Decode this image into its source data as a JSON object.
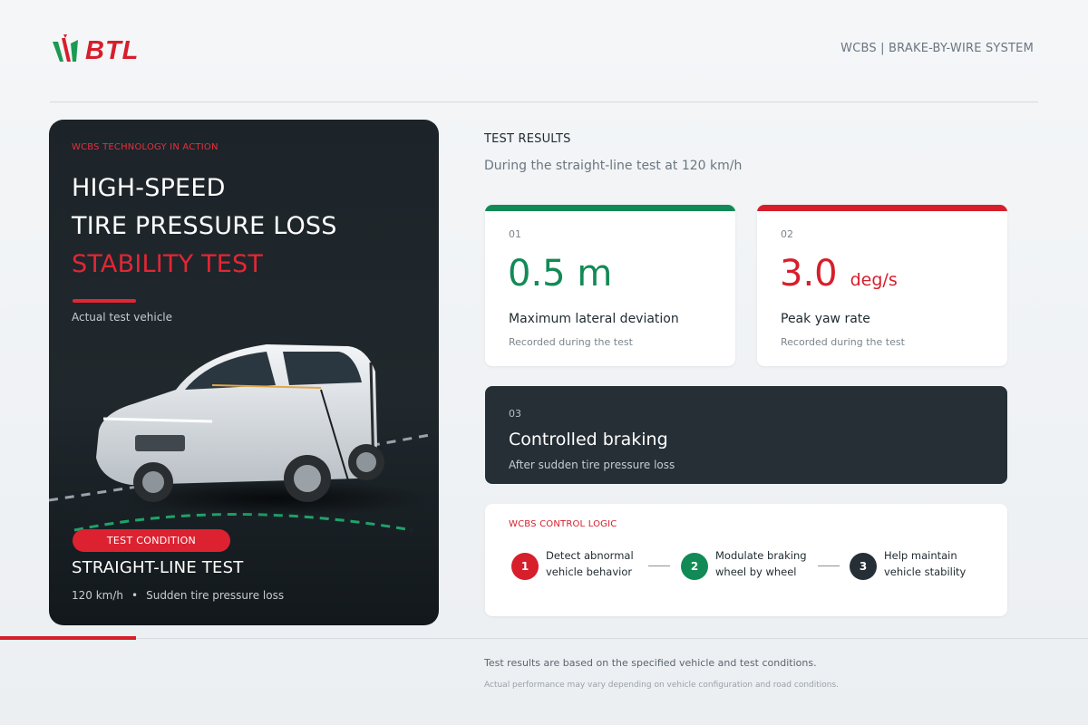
{
  "header": {
    "logo_text": "BTL",
    "tag": "WCBS | BRAKE-BY-WIRE SYSTEM"
  },
  "hero": {
    "kicker": "WCBS TECHNOLOGY IN ACTION",
    "title_line1": "HIGH-SPEED",
    "title_line2": "TIRE PRESSURE LOSS",
    "title_line3": "STABILITY TEST",
    "subtitle": "Actual test vehicle",
    "condition_pill": "TEST CONDITION",
    "condition_title": "STRAIGHT-LINE TEST",
    "condition_speed": "120 km/h",
    "condition_bullet": "•",
    "condition_detail": "Sudden tire pressure loss"
  },
  "results": {
    "heading": "TEST RESULTS",
    "subheading": "During the straight-line test at 120 km/h",
    "cards": [
      {
        "num": "01",
        "value": "0.5 m",
        "unit": "",
        "label": "Maximum lateral deviation",
        "note": "Recorded during the test",
        "accent": "#128a55"
      },
      {
        "num": "02",
        "value": "3.0",
        "unit": "deg/s",
        "label": "Peak yaw rate",
        "note": "Recorded during the test",
        "accent": "#d71e2b"
      }
    ],
    "braking": {
      "num": "03",
      "label": "Controlled braking",
      "note": "After sudden tire pressure loss"
    }
  },
  "logic": {
    "title": "WCBS CONTROL LOGIC",
    "steps": [
      {
        "n": "1",
        "line1": "Detect abnormal",
        "line2": "vehicle behavior",
        "color": "#d71e2b"
      },
      {
        "n": "2",
        "line1": "Modulate braking",
        "line2": "wheel by wheel",
        "color": "#128a55"
      },
      {
        "n": "3",
        "line1": "Help maintain",
        "line2": "vehicle stability",
        "color": "#262f36"
      }
    ]
  },
  "footer": {
    "line1": "Test results are based on the specified vehicle and test conditions.",
    "line2": "Actual performance may vary depending on vehicle configuration and road conditions."
  },
  "colors": {
    "brand_red": "#d71e2b",
    "brand_green": "#128a55",
    "dark": "#262f36"
  }
}
